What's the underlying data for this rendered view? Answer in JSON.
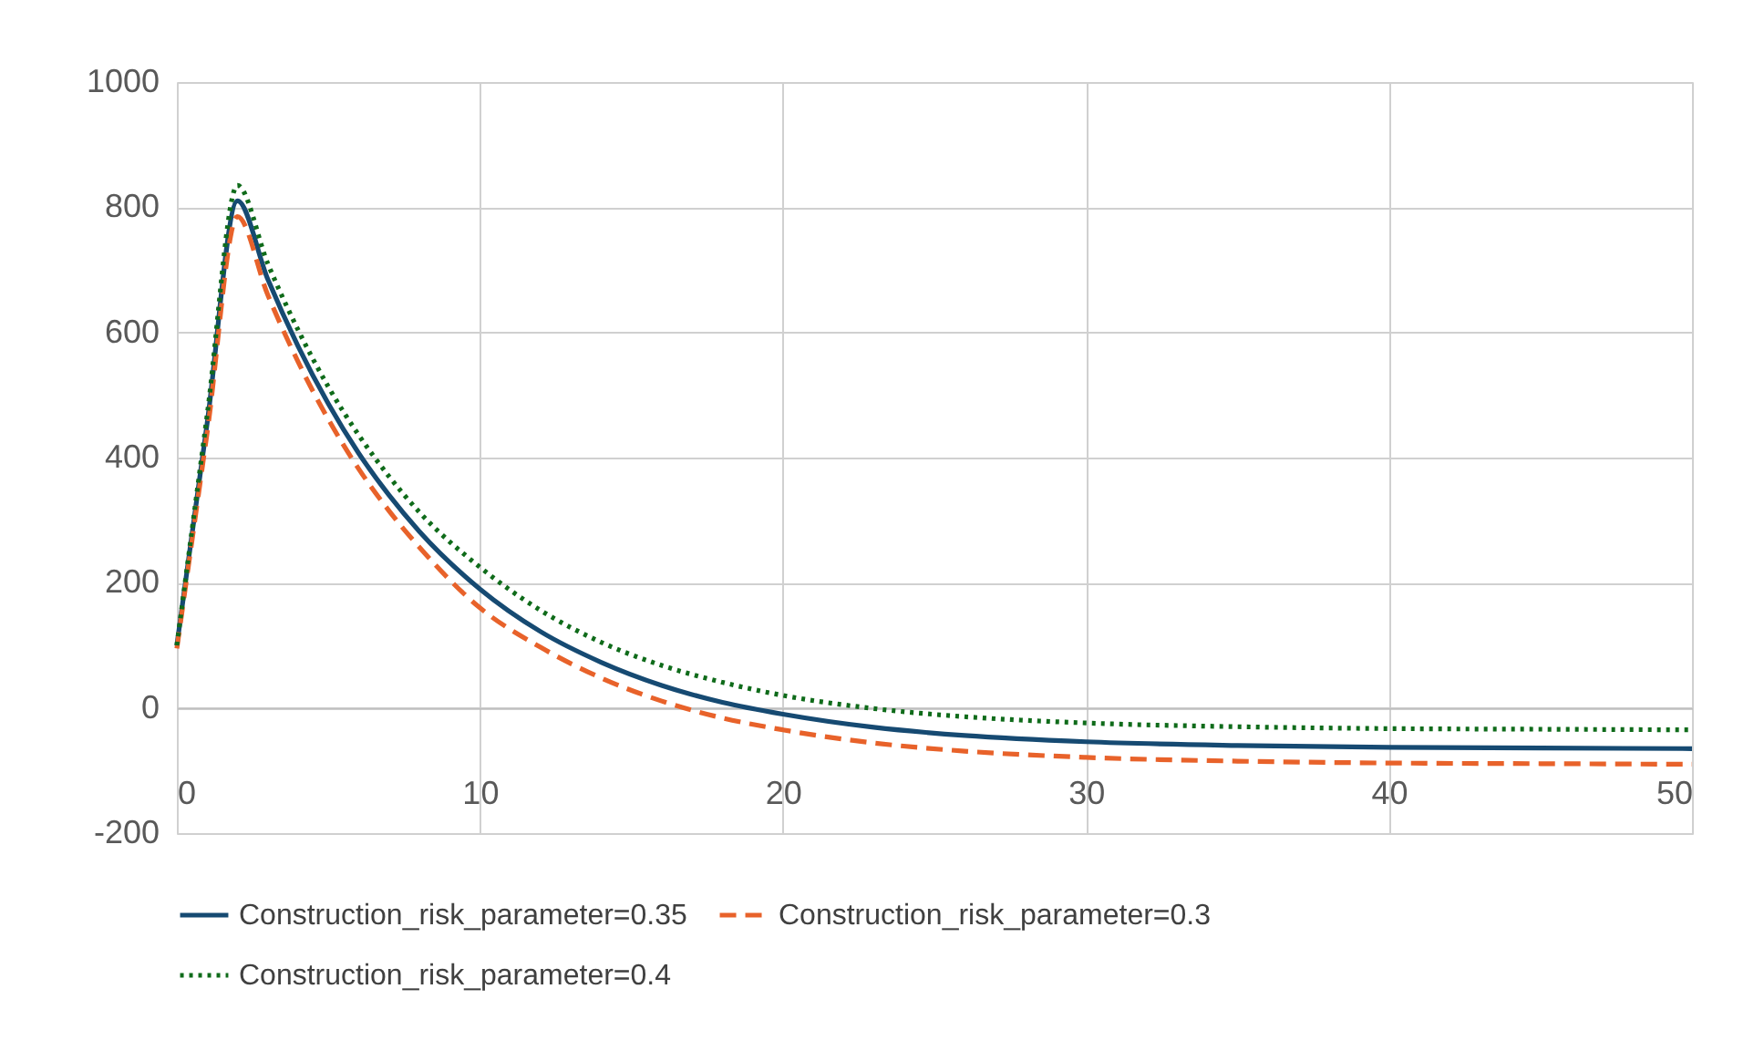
{
  "chart_data": {
    "type": "line",
    "x": [
      0,
      1,
      2,
      3,
      4,
      5,
      6,
      7,
      8,
      10,
      12,
      14,
      16,
      18,
      20,
      23,
      26,
      30,
      35,
      40,
      45,
      50
    ],
    "series": [
      {
        "name": "Construction_risk_parameter=0.35",
        "color": "#164a72",
        "line_style": "solid",
        "values": [
          100,
          455,
          810,
          685,
          578,
          486,
          407,
          340,
          282,
          190,
          122,
          73,
          36,
          9,
          -10,
          -31,
          -44,
          -54,
          -60,
          -63,
          -64,
          -65
        ]
      },
      {
        "name": "Construction_risk_parameter=0.3",
        "color": "#e8622a",
        "line_style": "dashed",
        "values": [
          95,
          440,
          785,
          660,
          553,
          461,
          382,
          315,
          257,
          160,
          97,
          48,
          11,
          -16,
          -35,
          -56,
          -69,
          -79,
          -85,
          -88,
          -89,
          -90
        ]
      },
      {
        "name": "Construction_risk_parameter=0.4",
        "color": "#0f6b1a",
        "line_style": "dotted",
        "values": [
          100,
          468,
          835,
          710,
          604,
          513,
          436,
          370,
          313,
          225,
          156,
          105,
          68,
          41,
          20,
          -1,
          -14,
          -24,
          -30,
          -33,
          -34,
          -35
        ]
      }
    ],
    "xlim": [
      0,
      50
    ],
    "xticks": [
      0,
      10,
      20,
      30,
      40,
      50
    ],
    "ylim": [
      -200,
      1000
    ],
    "yticks": [
      -200,
      0,
      200,
      400,
      600,
      800,
      {
        "value": 1000,
        "label": "1000"
      }
    ],
    "grid": true,
    "legend": "bottom"
  }
}
